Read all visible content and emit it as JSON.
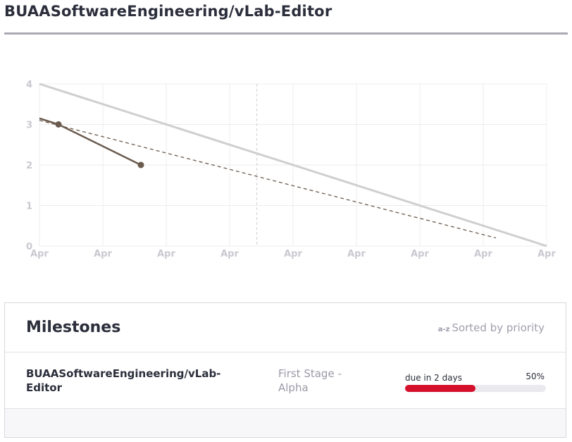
{
  "page": {
    "title": "BUAASoftwareEngineering/vLab-Editor"
  },
  "chart_data": {
    "type": "line",
    "x_tick_labels": [
      "Apr",
      "Apr",
      "Apr",
      "Apr",
      "Apr",
      "Apr",
      "Apr",
      "Apr",
      "Apr"
    ],
    "y_tick_labels": [
      "0",
      "1",
      "2",
      "3",
      "4"
    ],
    "xlim": [
      0,
      8
    ],
    "ylim": [
      0,
      4
    ],
    "grid": true,
    "today_marker_x": 3.43,
    "series": [
      {
        "values_xy": [
          [
            0,
            4
          ],
          [
            8,
            0
          ]
        ],
        "color": "#cfcfcf",
        "style": "solid"
      },
      {
        "values_xy": [
          [
            0,
            3.1
          ],
          [
            7.2,
            0.2
          ]
        ],
        "color": "#6b5b4e",
        "style": "dashed"
      },
      {
        "values_xy": [
          [
            0,
            3.15
          ],
          [
            0.3,
            3.0
          ],
          [
            1.6,
            2.0
          ]
        ],
        "markers_xy": [
          [
            0.3,
            3.0
          ],
          [
            1.6,
            2.0
          ]
        ],
        "color": "#6b5b4e",
        "style": "solid"
      }
    ]
  },
  "milestones": {
    "title": "Milestones",
    "sort_icon": "a-z",
    "sort_label": "Sorted by priority",
    "items": [
      {
        "repo": "BUAASoftwareEngineering/vLab-Editor",
        "stage": "First Stage - Alpha",
        "due": "due in 2 days",
        "progress_label": "50%",
        "progress": 0.5,
        "bar_color": "#d4102b"
      }
    ]
  }
}
